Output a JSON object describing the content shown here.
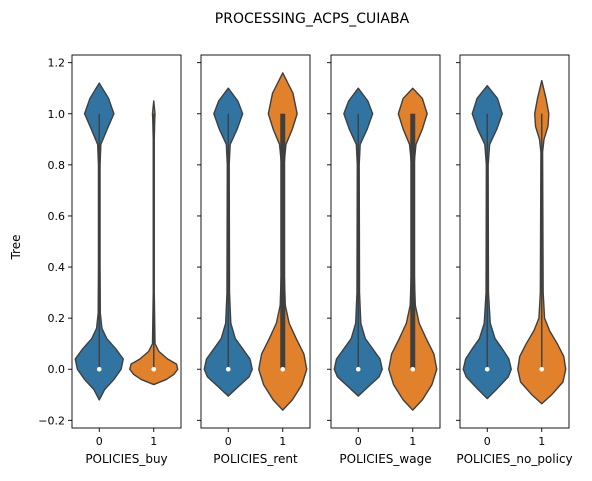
{
  "figure_title": "PROCESSING_ACPS_CUIABA",
  "colors": {
    "category_0": "#3274a1",
    "category_1": "#e1812c",
    "outline": "#3f3f3f"
  },
  "chart_data": [
    {
      "type": "violin",
      "xlabel": "POLICIES_buy",
      "ylabel": "Tree",
      "categories": [
        "0",
        "1"
      ],
      "ylim": [
        -0.23,
        1.23
      ],
      "yticks": [
        -0.2,
        0.0,
        0.2,
        0.4,
        0.6,
        0.8,
        1.0,
        1.2
      ],
      "ytick_labels": [
        "−0.2",
        "0.0",
        "0.2",
        "0.4",
        "0.6",
        "0.8",
        "1.0",
        "1.2"
      ],
      "violins": [
        {
          "category": "0",
          "color": "#3274a1",
          "median": 0.0,
          "q1": 0.0,
          "q3": 0.0,
          "whisker_low": 0.0,
          "whisker_high": 1.0,
          "density": [
            [
              -0.12,
              0.0
            ],
            [
              -0.08,
              0.2
            ],
            [
              -0.04,
              0.55
            ],
            [
              0.0,
              0.82
            ],
            [
              0.04,
              0.9
            ],
            [
              0.08,
              0.62
            ],
            [
              0.12,
              0.28
            ],
            [
              0.16,
              0.1
            ],
            [
              0.22,
              0.04
            ],
            [
              0.4,
              0.03
            ],
            [
              0.8,
              0.03
            ],
            [
              0.88,
              0.06
            ],
            [
              0.94,
              0.3
            ],
            [
              1.0,
              0.55
            ],
            [
              1.06,
              0.35
            ],
            [
              1.12,
              0.0
            ]
          ]
        },
        {
          "category": "1",
          "color": "#e1812c",
          "median": 0.0,
          "q1": 0.0,
          "q3": 0.0,
          "whisker_low": 0.0,
          "whisker_high": 1.0,
          "density": [
            [
              -0.06,
              0.0
            ],
            [
              -0.04,
              0.5
            ],
            [
              -0.02,
              0.8
            ],
            [
              0.0,
              0.95
            ],
            [
              0.02,
              0.9
            ],
            [
              0.04,
              0.55
            ],
            [
              0.07,
              0.2
            ],
            [
              0.1,
              0.05
            ],
            [
              0.3,
              0.02
            ],
            [
              0.9,
              0.02
            ],
            [
              0.98,
              0.04
            ],
            [
              1.0,
              0.05
            ],
            [
              1.05,
              0.0
            ]
          ]
        }
      ]
    },
    {
      "type": "violin",
      "xlabel": "POLICIES_rent",
      "categories": [
        "0",
        "1"
      ],
      "ylim": [
        -0.23,
        1.23
      ],
      "violins": [
        {
          "category": "0",
          "color": "#3274a1",
          "median": 0.0,
          "q1": 0.0,
          "q3": 0.0,
          "whisker_low": 0.0,
          "whisker_high": 1.0,
          "density": [
            [
              -0.105,
              0.0
            ],
            [
              -0.07,
              0.3
            ],
            [
              -0.03,
              0.65
            ],
            [
              0.0,
              0.75
            ],
            [
              0.04,
              0.68
            ],
            [
              0.08,
              0.45
            ],
            [
              0.12,
              0.22
            ],
            [
              0.18,
              0.08
            ],
            [
              0.3,
              0.04
            ],
            [
              0.8,
              0.03
            ],
            [
              0.88,
              0.06
            ],
            [
              0.94,
              0.28
            ],
            [
              1.0,
              0.45
            ],
            [
              1.05,
              0.3
            ],
            [
              1.1,
              0.0
            ]
          ]
        },
        {
          "category": "1",
          "color": "#e1812c",
          "median": 0.0,
          "q1": 0.0,
          "q3": 1.0,
          "whisker_low": 0.0,
          "whisker_high": 1.0,
          "density": [
            [
              -0.16,
              0.0
            ],
            [
              -0.12,
              0.3
            ],
            [
              -0.06,
              0.6
            ],
            [
              0.0,
              0.75
            ],
            [
              0.06,
              0.66
            ],
            [
              0.12,
              0.42
            ],
            [
              0.18,
              0.2
            ],
            [
              0.25,
              0.08
            ],
            [
              0.4,
              0.04
            ],
            [
              0.8,
              0.04
            ],
            [
              0.88,
              0.1
            ],
            [
              0.94,
              0.3
            ],
            [
              1.0,
              0.45
            ],
            [
              1.08,
              0.32
            ],
            [
              1.16,
              0.0
            ]
          ]
        }
      ]
    },
    {
      "type": "violin",
      "xlabel": "POLICIES_wage",
      "categories": [
        "0",
        "1"
      ],
      "ylim": [
        -0.23,
        1.23
      ],
      "violins": [
        {
          "category": "0",
          "color": "#3274a1",
          "median": 0.0,
          "q1": 0.0,
          "q3": 0.0,
          "whisker_low": 0.0,
          "whisker_high": 1.0,
          "density": [
            [
              -0.105,
              0.0
            ],
            [
              -0.07,
              0.3
            ],
            [
              -0.03,
              0.65
            ],
            [
              0.0,
              0.75
            ],
            [
              0.04,
              0.68
            ],
            [
              0.08,
              0.45
            ],
            [
              0.12,
              0.22
            ],
            [
              0.18,
              0.08
            ],
            [
              0.3,
              0.04
            ],
            [
              0.8,
              0.03
            ],
            [
              0.88,
              0.06
            ],
            [
              0.94,
              0.28
            ],
            [
              1.0,
              0.45
            ],
            [
              1.05,
              0.3
            ],
            [
              1.1,
              0.0
            ]
          ]
        },
        {
          "category": "1",
          "color": "#e1812c",
          "median": 0.0,
          "q1": 0.0,
          "q3": 1.0,
          "whisker_low": 0.0,
          "whisker_high": 1.0,
          "density": [
            [
              -0.16,
              0.0
            ],
            [
              -0.12,
              0.3
            ],
            [
              -0.06,
              0.6
            ],
            [
              0.0,
              0.75
            ],
            [
              0.06,
              0.66
            ],
            [
              0.12,
              0.42
            ],
            [
              0.18,
              0.2
            ],
            [
              0.25,
              0.08
            ],
            [
              0.4,
              0.04
            ],
            [
              0.8,
              0.04
            ],
            [
              0.88,
              0.1
            ],
            [
              0.94,
              0.3
            ],
            [
              1.0,
              0.45
            ],
            [
              1.06,
              0.3
            ],
            [
              1.1,
              0.0
            ]
          ]
        }
      ]
    },
    {
      "type": "violin",
      "xlabel": "POLICIES_no_policy",
      "categories": [
        "0",
        "1"
      ],
      "ylim": [
        -0.23,
        1.23
      ],
      "violins": [
        {
          "category": "0",
          "color": "#3274a1",
          "median": 0.0,
          "q1": 0.0,
          "q3": 0.0,
          "whisker_low": 0.0,
          "whisker_high": 1.0,
          "density": [
            [
              -0.115,
              0.0
            ],
            [
              -0.08,
              0.3
            ],
            [
              -0.03,
              0.7
            ],
            [
              0.0,
              0.8
            ],
            [
              0.04,
              0.72
            ],
            [
              0.08,
              0.5
            ],
            [
              0.12,
              0.26
            ],
            [
              0.18,
              0.1
            ],
            [
              0.3,
              0.04
            ],
            [
              0.8,
              0.03
            ],
            [
              0.88,
              0.08
            ],
            [
              0.94,
              0.32
            ],
            [
              1.0,
              0.5
            ],
            [
              1.06,
              0.34
            ],
            [
              1.11,
              0.0
            ]
          ]
        },
        {
          "category": "1",
          "color": "#e1812c",
          "median": 0.0,
          "q1": 0.0,
          "q3": 0.0,
          "whisker_low": 0.0,
          "whisker_high": 1.0,
          "density": [
            [
              -0.135,
              0.0
            ],
            [
              -0.1,
              0.35
            ],
            [
              -0.05,
              0.75
            ],
            [
              0.0,
              0.85
            ],
            [
              0.05,
              0.78
            ],
            [
              0.1,
              0.55
            ],
            [
              0.15,
              0.28
            ],
            [
              0.2,
              0.1
            ],
            [
              0.3,
              0.05
            ],
            [
              0.85,
              0.03
            ],
            [
              0.9,
              0.08
            ],
            [
              0.95,
              0.22
            ],
            [
              1.0,
              0.25
            ],
            [
              1.06,
              0.15
            ],
            [
              1.13,
              0.0
            ]
          ]
        }
      ]
    }
  ]
}
